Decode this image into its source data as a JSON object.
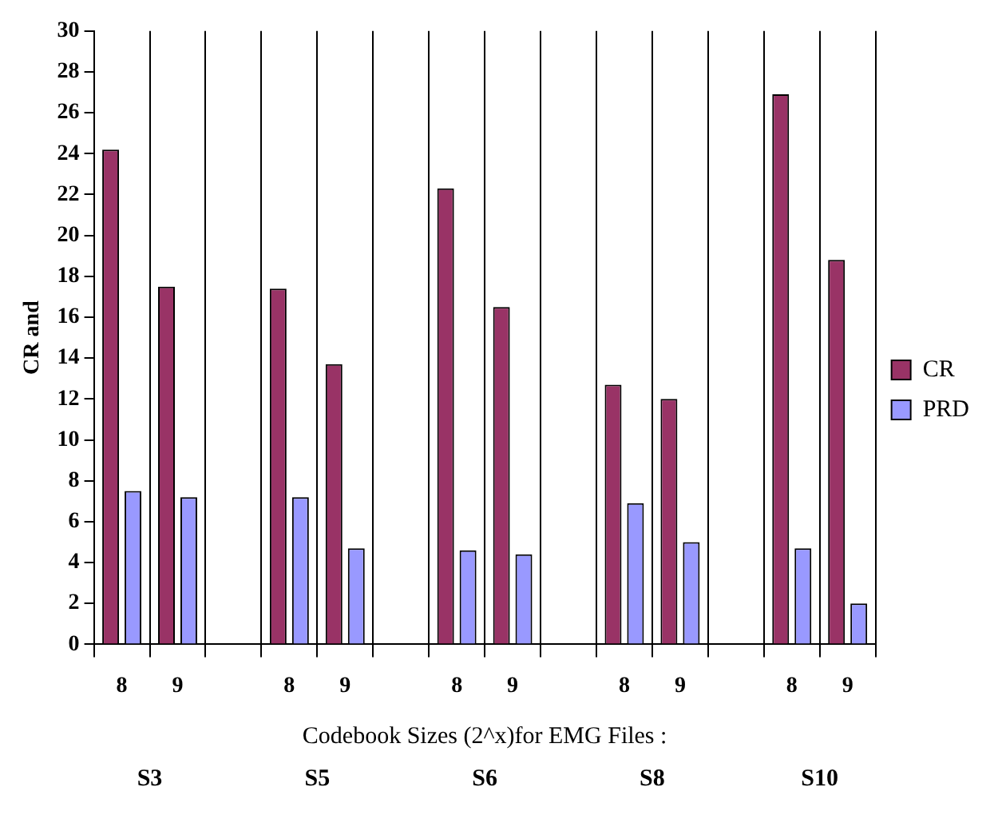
{
  "chart_data": {
    "type": "bar",
    "categories": [
      "8",
      "9",
      null,
      "8",
      "9",
      null,
      "8",
      "9",
      null,
      "8",
      "9",
      null,
      "8",
      "9"
    ],
    "series": [
      {
        "name": "CR",
        "color": "#993366",
        "values": [
          24.2,
          17.5,
          null,
          17.4,
          13.7,
          null,
          22.3,
          16.5,
          null,
          12.7,
          12.0,
          null,
          26.9,
          18.8
        ]
      },
      {
        "name": "PRD",
        "color": "#9999ff",
        "values": [
          7.5,
          7.2,
          null,
          7.2,
          4.7,
          null,
          4.6,
          4.4,
          null,
          6.9,
          5.0,
          null,
          4.7,
          2.0
        ]
      }
    ],
    "ylabel": "CR and",
    "xlabel": "Codebook Sizes (2^x)for EMG Files :",
    "annotations": [
      "S3",
      "S5",
      "S6",
      "S8",
      "S10"
    ],
    "ylim": [
      0,
      30
    ],
    "yticks": [
      0,
      2,
      4,
      6,
      8,
      10,
      12,
      14,
      16,
      18,
      20,
      22,
      24,
      26,
      28,
      30
    ],
    "grid": "x",
    "legend": "right"
  }
}
